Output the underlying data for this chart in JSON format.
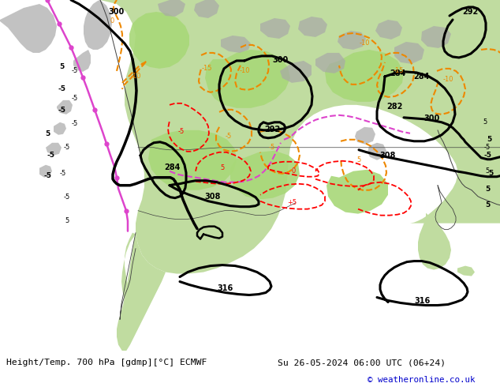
{
  "title_left": "Height/Temp. 700 hPa [gdmp][°C] ECMWF",
  "title_right": "Su 26-05-2024 06:00 UTC (06+24)",
  "copyright": "© weatheronline.co.uk",
  "bg_color": "#d8d8d8",
  "map_bg": "#d8d8d8",
  "land_color": "#c8e8a8",
  "ocean_color": "#d8d8d8",
  "green_area": "#b8e090",
  "gray_area": "#a8a8a8",
  "bottom_bar_color": "#ffffff",
  "bottom_text_color": "#000000",
  "copyright_color": "#0000cc",
  "figsize": [
    6.34,
    4.9
  ],
  "dpi": 100
}
